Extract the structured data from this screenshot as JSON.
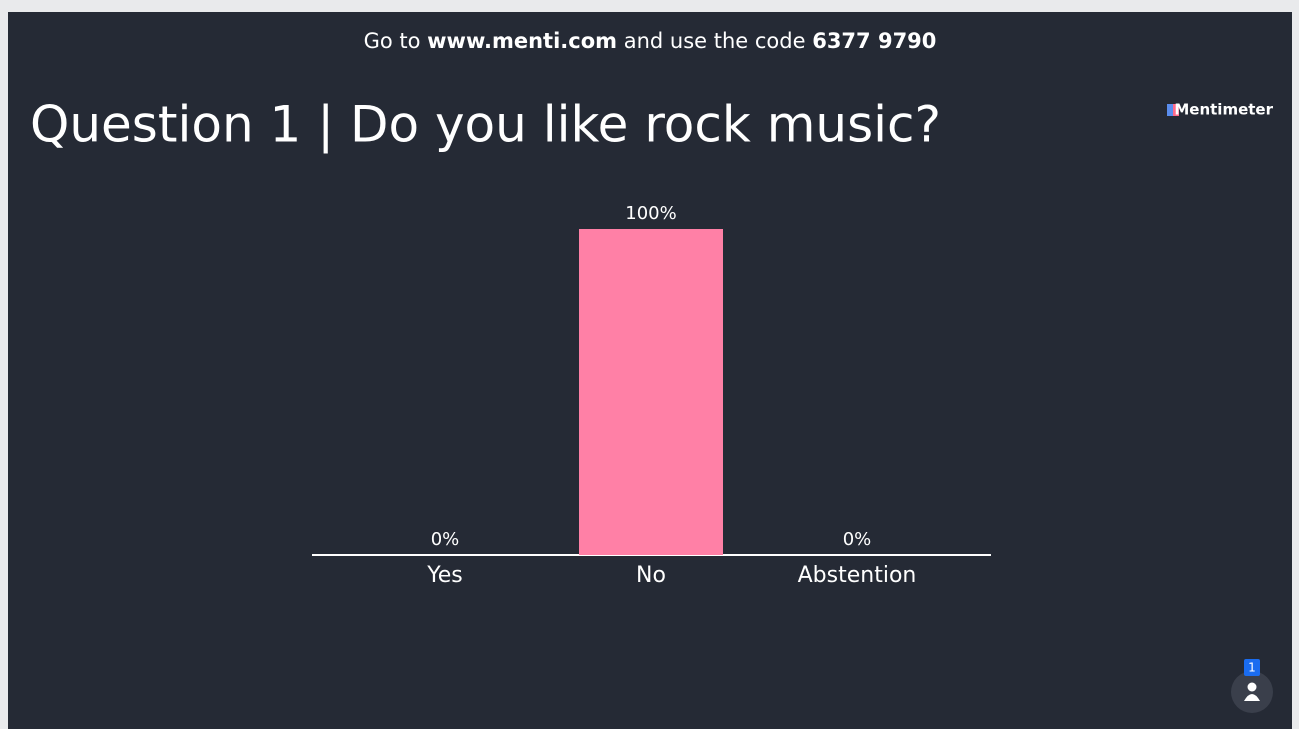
{
  "instructions": {
    "prefix": "Go to ",
    "site": "www.menti.com",
    "middle": " and use the code ",
    "code": "6377 9790"
  },
  "brand": "Mentimeter",
  "participants": 1,
  "chart_data": {
    "type": "bar",
    "title": "Question 1 | Do you like rock music?",
    "categories": [
      "Yes",
      "No",
      "Abstention"
    ],
    "values": [
      0,
      100,
      0
    ],
    "value_labels": [
      "0%",
      "100%",
      "0%"
    ],
    "color": "#ff80a6"
  }
}
